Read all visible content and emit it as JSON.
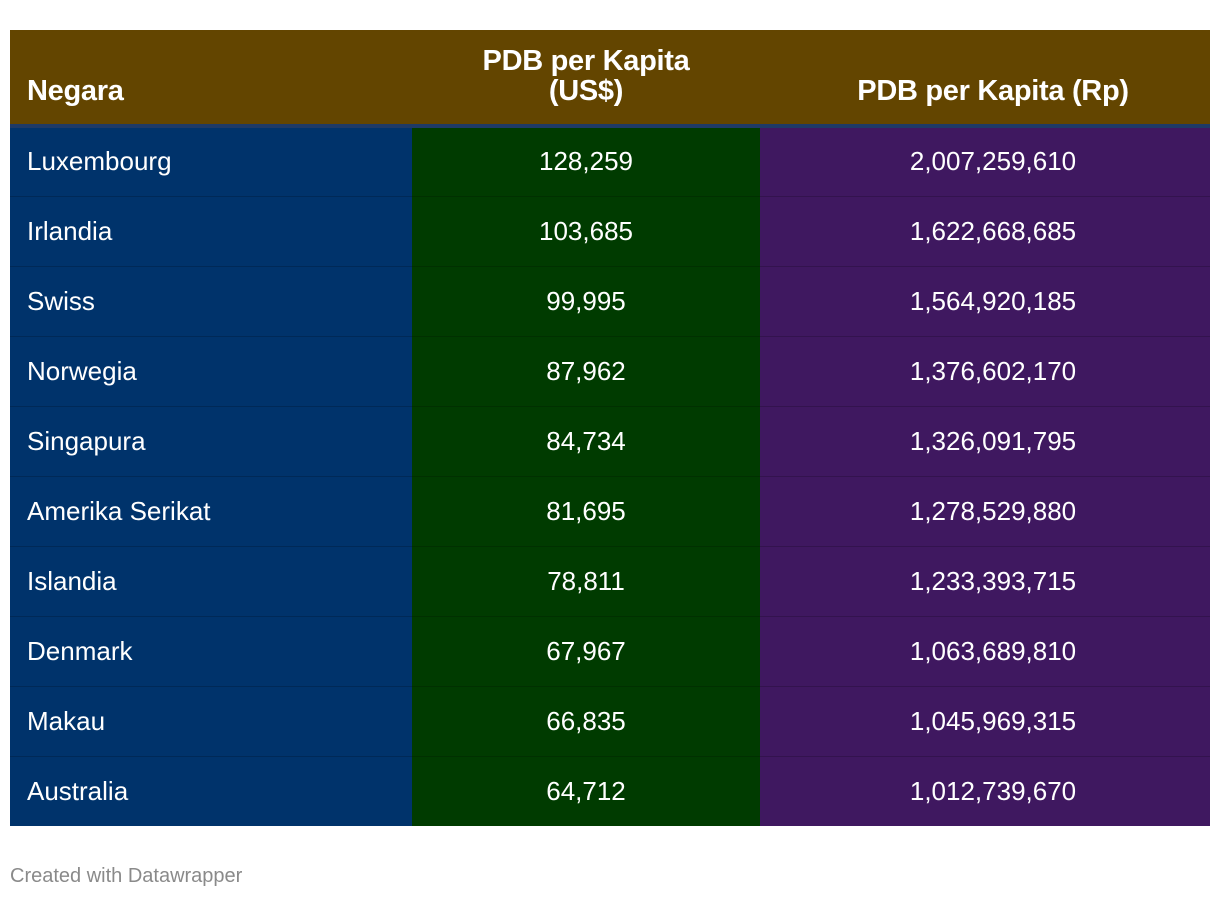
{
  "chart_data": {
    "type": "table",
    "columns": [
      "Negara",
      "PDB per Kapita (US$)",
      "PDB per Kapita (Rp)"
    ],
    "header_lines": {
      "country": "Negara",
      "usd_line1": "PDB per Kapita",
      "usd_line2": "(US$)",
      "rp": "PDB per Kapita (Rp)"
    },
    "rows": [
      {
        "country": "Luxembourg",
        "usd": "128,259",
        "rp": "2,007,259,610"
      },
      {
        "country": "Irlandia",
        "usd": "103,685",
        "rp": "1,622,668,685"
      },
      {
        "country": "Swiss",
        "usd": "99,995",
        "rp": "1,564,920,185"
      },
      {
        "country": "Norwegia",
        "usd": "87,962",
        "rp": "1,376,602,170"
      },
      {
        "country": "Singapura",
        "usd": "84,734",
        "rp": "1,326,091,795"
      },
      {
        "country": "Amerika Serikat",
        "usd": "81,695",
        "rp": "1,278,529,880"
      },
      {
        "country": "Islandia",
        "usd": "78,811",
        "rp": "1,233,393,715"
      },
      {
        "country": "Denmark",
        "usd": "67,967",
        "rp": "1,063,689,810"
      },
      {
        "country": "Makau",
        "usd": "66,835",
        "rp": "1,045,969,315"
      },
      {
        "country": "Australia",
        "usd": "64,712",
        "rp": "1,012,739,670"
      }
    ],
    "colors": {
      "header": "#634500",
      "country_column": "#00336b",
      "usd_column": "#003b00",
      "rp_column": "#3f1860",
      "text": "#ffffff"
    }
  },
  "footer": {
    "credit": "Created with Datawrapper"
  }
}
